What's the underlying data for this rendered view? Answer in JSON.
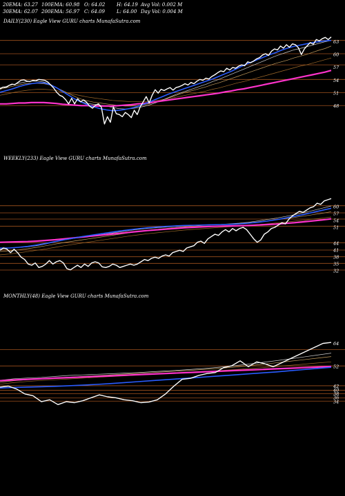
{
  "header": {
    "row1": [
      {
        "key": "ema20",
        "label": "20EMA: 63.27"
      },
      {
        "key": "ema100",
        "label": "100EMA: 60.98"
      },
      {
        "key": "open",
        "label": "O: 64.02"
      },
      {
        "key": "high",
        "label": "H: 64.19"
      },
      {
        "key": "avgvol",
        "label": "Avg Vol: 0.002  M"
      }
    ],
    "row2": [
      {
        "key": "ema30",
        "label": "30EMA: 62.07"
      },
      {
        "key": "ema200",
        "label": "200EMA: 56.97"
      },
      {
        "key": "close",
        "label": "C: 64.09"
      },
      {
        "key": "low",
        "label": "L: 64.00"
      },
      {
        "key": "dayvol",
        "label": "Day Vol: 0.004  M"
      }
    ]
  },
  "colors": {
    "price": "#ffffff",
    "ema_fast": "#d0d0d0",
    "ema_mid": "#c8a060",
    "ema_slow": "#a06a2a",
    "ema_blue": "#2a5cff",
    "ema_200": "#ff33cc",
    "hline": "#a0521e"
  },
  "chart_data": [
    {
      "type": "line",
      "title": "DAILY(230) Eagle  View  GURU charts MunafaSutra.com",
      "ylim": [
        43,
        65.5
      ],
      "yticks": [
        63,
        60,
        57,
        54,
        51,
        48
      ],
      "hlines": [
        63.3,
        60.2,
        57.6,
        54.2,
        51.1,
        48.1
      ],
      "series": [
        {
          "role": "price",
          "values": [
            52.0,
            52.4,
            52.3,
            52.8,
            53.1,
            53.0,
            53.5,
            54.0,
            54.1,
            53.8,
            53.7,
            54.0,
            53.9,
            54.2,
            54.1,
            54.0,
            53.6,
            52.9,
            52.2,
            51.2,
            50.5,
            50.2,
            49.5,
            48.5,
            49.8,
            48.5,
            49.7,
            49.0,
            49.4,
            48.9,
            48.0,
            47.5,
            48.2,
            48.5,
            47.7,
            43.8,
            45.5,
            44.2,
            47.8,
            46.2,
            46.0,
            45.5,
            46.5,
            46.0,
            45.3,
            47.0,
            46.0,
            47.8,
            49.0,
            50.2,
            48.7,
            50.5,
            51.8,
            51.0,
            51.9,
            51.6,
            52.0,
            52.3,
            51.7,
            52.3,
            52.5,
            52.8,
            53.2,
            52.9,
            53.5,
            53.2,
            53.8,
            54.2,
            54.0,
            54.5,
            54.3,
            54.9,
            55.3,
            55.8,
            56.2,
            56.0,
            56.8,
            56.4,
            57.0,
            56.8,
            57.3,
            57.6,
            57.4,
            58.3,
            58.1,
            58.5,
            59.0,
            59.3,
            59.9,
            60.2,
            59.8,
            60.8,
            61.3,
            61.1,
            62.0,
            61.5,
            62.3,
            61.7,
            62.5,
            62.3,
            61.6,
            60.0,
            61.3,
            62.1,
            62.8,
            62.4,
            63.5,
            63.2,
            63.7,
            64.0,
            63.5,
            64.1
          ]
        },
        {
          "role": "ema_fast",
          "values": [
            52.2,
            52.6,
            53.0,
            53.3,
            53.6,
            53.8,
            53.8,
            53.6,
            53.1,
            52.3,
            51.4,
            50.5,
            49.6,
            49.0,
            48.6,
            48.4,
            48.2,
            48.0,
            47.7,
            47.4,
            47.3,
            47.4,
            47.6,
            47.9,
            48.3,
            48.8,
            49.4,
            50.0,
            50.6,
            51.1,
            51.6,
            52.1,
            52.6,
            53.1,
            53.7,
            54.2,
            54.8,
            55.4,
            56.0,
            56.6,
            57.2,
            57.8,
            58.4,
            59.0,
            59.6,
            60.1,
            60.6,
            61.1,
            61.4,
            61.8,
            62.2,
            62.6,
            63.0,
            63.3
          ]
        },
        {
          "role": "ema_mid",
          "values": [
            51.9,
            52.3,
            52.6,
            52.9,
            53.2,
            53.3,
            53.3,
            53.2,
            52.9,
            52.3,
            51.6,
            50.9,
            50.2,
            49.6,
            49.2,
            48.9,
            48.7,
            48.5,
            48.3,
            48.1,
            48.0,
            48.0,
            48.1,
            48.3,
            48.6,
            49.0,
            49.4,
            49.9,
            50.4,
            50.9,
            51.3,
            51.7,
            52.1,
            52.5,
            53.0,
            53.4,
            53.9,
            54.4,
            54.9,
            55.4,
            55.9,
            56.4,
            56.9,
            57.4,
            57.9,
            58.3,
            58.7,
            59.2,
            59.6,
            60.0,
            60.5,
            61.0,
            61.4,
            62.0
          ]
        },
        {
          "role": "ema_slow",
          "values": [
            50.5,
            50.8,
            51.1,
            51.4,
            51.6,
            51.8,
            51.9,
            51.9,
            51.8,
            51.6,
            51.3,
            51.0,
            50.7,
            50.4,
            50.1,
            49.9,
            49.7,
            49.5,
            49.3,
            49.2,
            49.1,
            49.0,
            49.0,
            49.0,
            49.1,
            49.3,
            49.5,
            49.7,
            50.0,
            50.3,
            50.6,
            50.9,
            51.2,
            51.5,
            51.9,
            52.2,
            52.6,
            53.0,
            53.4,
            53.7,
            54.1,
            54.5,
            54.9,
            55.3,
            55.7,
            56.1,
            56.5,
            56.9,
            57.3,
            57.6,
            58.0,
            58.4,
            58.8,
            59.2
          ]
        },
        {
          "role": "ema_blue",
          "values": [
            51.2,
            51.6,
            52.0,
            52.5,
            52.9,
            53.2,
            53.4,
            53.4,
            53.0,
            52.3,
            51.4,
            50.5,
            49.6,
            48.9,
            48.3,
            47.8,
            47.4,
            47.1,
            46.9,
            47.0,
            47.2,
            47.5,
            47.9,
            48.4,
            49.0,
            49.6,
            50.2,
            50.8,
            51.3,
            51.8,
            52.3,
            52.8,
            53.3,
            53.8,
            54.3,
            54.9,
            55.5,
            56.1,
            56.8,
            57.5,
            58.1,
            58.7,
            59.3,
            59.9,
            60.4,
            61.0,
            61.5,
            61.9,
            62.2,
            62.5,
            62.8,
            63.0,
            63.2,
            63.3
          ]
        },
        {
          "role": "ema_200",
          "values": [
            48.5,
            48.5,
            48.6,
            48.7,
            48.7,
            48.8,
            48.8,
            48.8,
            48.7,
            48.6,
            48.4,
            48.3,
            48.2,
            48.1,
            48.1,
            48.0,
            48.0,
            48.0,
            48.0,
            48.1,
            48.2,
            48.3,
            48.5,
            48.6,
            48.8,
            49.0,
            49.2,
            49.4,
            49.6,
            49.8,
            50.0,
            50.2,
            50.4,
            50.6,
            50.8,
            51.0,
            51.3,
            51.5,
            51.8,
            52.0,
            52.3,
            52.6,
            52.9,
            53.2,
            53.5,
            53.8,
            54.1,
            54.4,
            54.7,
            55.0,
            55.3,
            55.6,
            55.9,
            56.3
          ]
        }
      ]
    },
    {
      "type": "line",
      "title": "WEEKLY(233) Eagle  View  GURU charts MunafaSutra.com",
      "ylim": [
        30,
        63
      ],
      "yticks": [
        60,
        57,
        54,
        51,
        44,
        41,
        38,
        35,
        32
      ],
      "hlines": [
        60.4,
        57.3,
        54.6,
        51.5,
        44.3,
        41.1,
        38.2,
        35.3,
        32.4
      ],
      "series": [
        {
          "role": "price",
          "values": [
            41.0,
            42.0,
            41.5,
            40.0,
            41.5,
            40.0,
            38.0,
            37.0,
            35.0,
            34.5,
            35.5,
            33.5,
            34.0,
            35.0,
            36.5,
            35.0,
            36.0,
            36.5,
            35.5,
            33.0,
            32.5,
            33.5,
            34.5,
            33.5,
            35.0,
            34.0,
            35.5,
            36.0,
            35.5,
            33.8,
            33.5,
            34.0,
            35.0,
            34.5,
            33.5,
            34.0,
            34.5,
            35.0,
            34.5,
            35.0,
            36.0,
            37.0,
            36.5,
            37.5,
            38.0,
            37.5,
            38.5,
            39.0,
            38.5,
            40.0,
            40.5,
            41.0,
            40.5,
            42.0,
            42.5,
            43.0,
            44.5,
            45.0,
            44.0,
            46.0,
            47.0,
            48.0,
            47.5,
            49.0,
            50.0,
            49.0,
            50.5,
            49.5,
            50.5,
            51.0,
            50.0,
            48.0,
            46.0,
            44.5,
            45.5,
            48.0,
            49.0,
            50.5,
            51.0,
            52.0,
            53.0,
            52.5,
            54.5,
            56.0,
            57.0,
            58.0,
            57.5,
            58.5,
            59.5,
            60.0,
            61.5,
            61.0,
            62.5,
            63.0,
            63.5
          ]
        },
        {
          "role": "ema_fast",
          "values": [
            41.5,
            42.0,
            42.2,
            42.5,
            43.0,
            43.8,
            44.7,
            45.5,
            46.2,
            46.8,
            47.3,
            47.8,
            48.4,
            49.0,
            49.6,
            50.1,
            50.5,
            50.8,
            51.1,
            51.4,
            51.6,
            51.8,
            52.0,
            52.2,
            52.3,
            52.5,
            52.8,
            53.2,
            53.8,
            54.4,
            55.0,
            55.7,
            56.5,
            57.4,
            58.3,
            59.3,
            60.3
          ]
        },
        {
          "role": "ema_mid",
          "values": [
            40.5,
            40.8,
            41.2,
            41.7,
            42.3,
            43.0,
            43.7,
            44.4,
            45.0,
            45.6,
            46.2,
            46.8,
            47.4,
            48.0,
            48.6,
            49.2,
            49.7,
            50.1,
            50.5,
            50.9,
            51.2,
            51.5,
            51.8,
            52.0,
            52.2,
            52.4,
            52.7,
            53.0,
            53.4,
            53.8,
            54.3,
            54.8,
            55.3,
            55.9,
            56.5,
            57.1,
            57.8
          ]
        },
        {
          "role": "ema_slow",
          "values": [
            39.0,
            39.4,
            39.9,
            40.4,
            41.0,
            41.6,
            42.3,
            43.0,
            43.6,
            44.2,
            44.8,
            45.4,
            46.0,
            46.6,
            47.2,
            47.7,
            48.2,
            48.6,
            49.0,
            49.4,
            49.8,
            50.1,
            50.4,
            50.7,
            51.0,
            51.3,
            51.6,
            51.9,
            52.2,
            52.5,
            52.9,
            53.3,
            53.7,
            54.1,
            54.6,
            55.0,
            55.5
          ]
        },
        {
          "role": "ema_blue",
          "values": [
            42.0,
            42.0,
            42.3,
            42.7,
            43.3,
            44.0,
            44.8,
            45.6,
            46.3,
            47.0,
            47.6,
            48.2,
            48.8,
            49.4,
            49.9,
            50.4,
            50.8,
            51.1,
            51.4,
            51.6,
            51.8,
            51.9,
            52.0,
            52.1,
            52.2,
            52.3,
            52.5,
            52.8,
            53.2,
            53.7,
            54.3,
            55.0,
            55.8,
            56.6,
            57.5,
            58.4,
            59.3
          ]
        },
        {
          "role": "ema_200",
          "values": [
            44.5,
            44.6,
            44.7,
            44.8,
            45.0,
            45.3,
            45.6,
            46.0,
            46.4,
            46.8,
            47.2,
            47.6,
            48.0,
            48.4,
            48.8,
            49.2,
            49.6,
            49.9,
            50.2,
            50.5,
            50.8,
            51.0,
            51.2,
            51.4,
            51.5,
            51.6,
            51.7,
            51.8,
            52.0,
            52.2,
            52.4,
            52.7,
            53.0,
            53.4,
            53.8,
            54.2,
            54.7
          ]
        }
      ]
    },
    {
      "type": "line",
      "title": "MONTHLY(48) Eagle  View  GURU charts MunafaSutra.com",
      "ylim": [
        28,
        67
      ],
      "yticks": [
        64,
        52,
        42,
        40,
        38,
        36,
        34
      ],
      "hlines": [
        60.8,
        52.4,
        42.2,
        39.9,
        38.1,
        35.9,
        34.3
      ],
      "series": [
        {
          "role": "price",
          "values": [
            41.5,
            42.0,
            40.5,
            38.0,
            37.0,
            34.0,
            35.0,
            32.5,
            34.0,
            33.5,
            34.5,
            36.0,
            37.5,
            36.5,
            36.0,
            35.0,
            34.5,
            33.5,
            33.8,
            35.0,
            38.0,
            42.0,
            45.5,
            46.0,
            47.5,
            48.5,
            49.0,
            51.5,
            52.5,
            55.0,
            52.0,
            54.5,
            53.5,
            52.0,
            54.0,
            56.0,
            58.0,
            60.0,
            62.0,
            64.0,
            64.5
          ]
        },
        {
          "role": "ema_fast",
          "values": [
            45.0,
            45.8,
            46.2,
            46.5,
            47.0,
            47.5,
            47.8,
            48.1,
            48.4,
            48.7,
            49.0,
            49.4,
            49.8,
            50.2,
            50.7,
            51.2,
            51.8,
            52.5,
            53.3,
            54.2,
            55.1,
            56.0,
            57.0,
            58.0,
            59.0
          ]
        },
        {
          "role": "ema_mid",
          "values": [
            44.0,
            44.8,
            45.3,
            45.8,
            46.2,
            46.6,
            47.0,
            47.4,
            47.8,
            48.2,
            48.6,
            49.0,
            49.4,
            49.8,
            50.2,
            50.7,
            51.2,
            51.8,
            52.5,
            53.2,
            54.0,
            54.8,
            55.6,
            56.4,
            57.2
          ]
        },
        {
          "role": "ema_slow",
          "values": [
            43.0,
            43.8,
            44.4,
            44.9,
            45.3,
            45.7,
            46.1,
            46.5,
            46.9,
            47.3,
            47.7,
            48.1,
            48.5,
            48.9,
            49.3,
            49.7,
            50.1,
            50.5,
            51.0,
            51.5,
            52.1,
            52.7,
            53.3,
            53.9,
            54.5
          ]
        },
        {
          "role": "ema_blue",
          "values": [
            41.0,
            41.3,
            41.5,
            41.7,
            41.9,
            42.2,
            42.5,
            42.9,
            43.3,
            43.8,
            44.3,
            44.8,
            45.3,
            45.8,
            46.3,
            46.8,
            47.3,
            47.8,
            48.3,
            48.8,
            49.3,
            49.9,
            50.5,
            51.1,
            51.7
          ]
        },
        {
          "role": "ema_200",
          "values": [
            44.8,
            45.2,
            45.5,
            45.8,
            46.1,
            46.4,
            46.7,
            47.0,
            47.3,
            47.6,
            47.9,
            48.2,
            48.5,
            48.8,
            49.1,
            49.4,
            49.7,
            50.0,
            50.3,
            50.6,
            50.9,
            51.2,
            51.5,
            51.8,
            52.1
          ]
        }
      ]
    }
  ]
}
